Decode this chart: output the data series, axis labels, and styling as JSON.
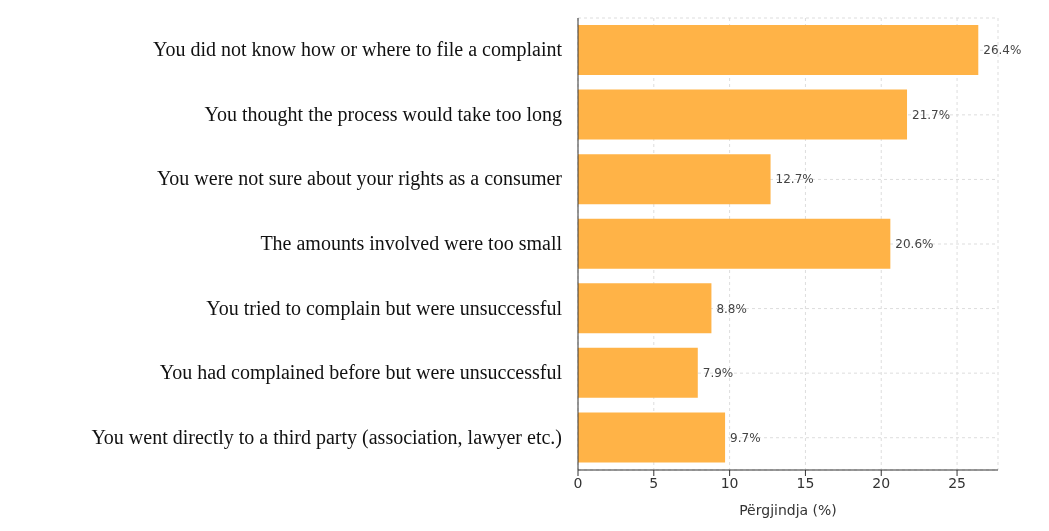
{
  "chart_data": {
    "type": "bar",
    "orientation": "horizontal",
    "xlabel": "Përgjindja (%)",
    "categories": [
      "You did not know how or where to file a complaint",
      "You thought the process would take too long",
      "You were not sure about your rights as a consumer",
      "The amounts involved were too small",
      "You tried to complain but were unsuccessful",
      "You had complained before but were unsuccessful",
      "You went directly to a third party (association, lawyer etc.)"
    ],
    "values": [
      26.4,
      21.7,
      12.7,
      20.6,
      8.8,
      7.9,
      9.7
    ],
    "value_labels": [
      "26.4%",
      "21.7%",
      "12.7%",
      "20.6%",
      "8.8%",
      "7.9%",
      "9.7%"
    ],
    "color": "#ffb347",
    "xlim": [
      0,
      27.7
    ],
    "xticks": [
      0,
      5,
      10,
      15,
      20,
      25
    ],
    "grid": true
  }
}
